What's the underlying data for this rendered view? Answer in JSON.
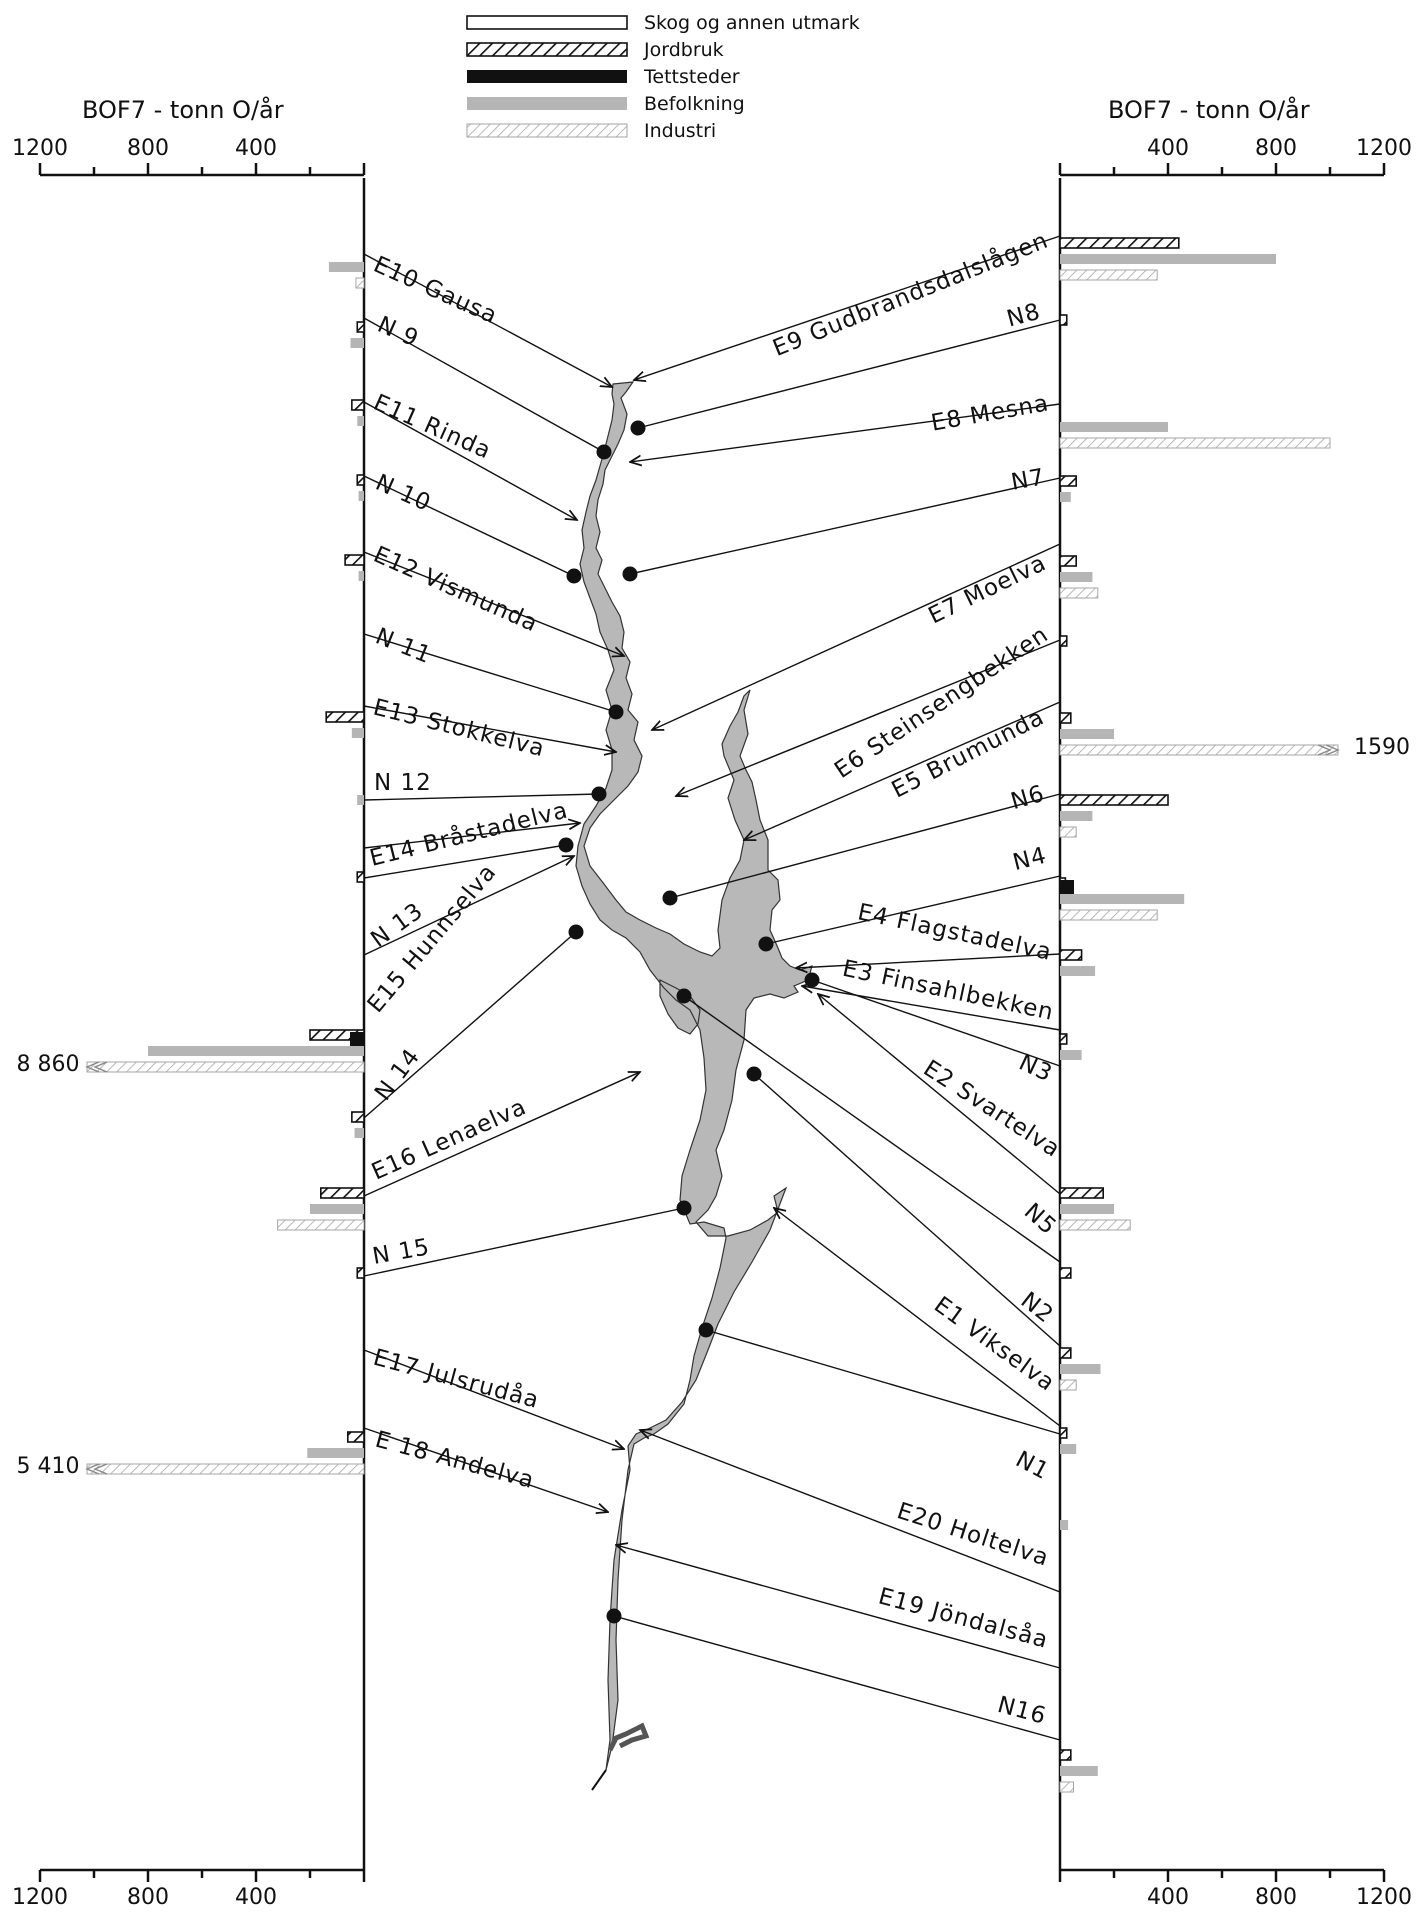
{
  "chart_data": {
    "type": "bar",
    "units": "BOF7 - tonn O/år",
    "left_axis": {
      "title": "BOF7 - tonn O/år",
      "ticks": [
        1200,
        800,
        400
      ],
      "range": [
        0,
        1200
      ]
    },
    "right_axis": {
      "title": "BOF7 - tonn O/år",
      "ticks": [
        400,
        800,
        1200
      ],
      "range": [
        0,
        1200
      ]
    },
    "legend": [
      {
        "key": "skog",
        "label": "Skog og annen utmark",
        "style": "open"
      },
      {
        "key": "jord",
        "label": "Jordbruk",
        "style": "hatched"
      },
      {
        "key": "tett",
        "label": "Tettsteder",
        "style": "solid"
      },
      {
        "key": "bef",
        "label": "Befolkning",
        "style": "grey"
      },
      {
        "key": "ind",
        "label": "Industri",
        "style": "light-hatched"
      }
    ],
    "series": [
      {
        "name": "Skog og annen utmark",
        "key": "skog"
      },
      {
        "name": "Jordbruk",
        "key": "jord"
      },
      {
        "name": "Tettsteder",
        "key": "tett"
      },
      {
        "name": "Befolkning",
        "key": "bef"
      },
      {
        "name": "Industri",
        "key": "ind"
      }
    ],
    "left_stations": [
      {
        "label": "E10 Gausa",
        "jord": 0,
        "bef": 130,
        "ind": 30
      },
      {
        "label": "N 9",
        "jord": 25,
        "bef": 50,
        "ind": 0
      },
      {
        "label": "E11 Rinda",
        "jord": 45,
        "bef": 25,
        "ind": 0
      },
      {
        "label": "N 10",
        "jord": 25,
        "bef": 20,
        "ind": 0
      },
      {
        "label": "E12 Vismunda",
        "jord": 70,
        "bef": 20,
        "ind": 0
      },
      {
        "label": "N 11",
        "jord": 0,
        "bef": 0,
        "ind": 0
      },
      {
        "label": "E13 Stokkelva",
        "jord": 140,
        "bef": 45,
        "ind": 0
      },
      {
        "label": "N 12",
        "jord": 0,
        "bef": 25,
        "ind": 0
      },
      {
        "label": "E14 Bråstadelva",
        "jord": 25,
        "bef": 0,
        "ind": 0
      },
      {
        "label": "N 13",
        "jord": 0,
        "bef": 0,
        "ind": 0
      },
      {
        "label": "E15 Hunnselva",
        "jord": 200,
        "tett": 50,
        "bef": 800,
        "ind": 8860,
        "ind_label": "8 860"
      },
      {
        "label": "N 14",
        "jord": 45,
        "bef": 35,
        "ind": 0
      },
      {
        "label": "E16 Lenaelva",
        "jord": 160,
        "bef": 200,
        "ind": 320
      },
      {
        "label": "N 15",
        "jord": 25,
        "bef": 0,
        "ind": 0
      },
      {
        "label": "E17 Julsrudåa",
        "jord": 60,
        "bef": 210,
        "ind": 5410,
        "ind_label": "5 410"
      },
      {
        "label": "E 18 Andelva",
        "jord": 0,
        "bef": 0,
        "ind": 0
      }
    ],
    "right_stations": [
      {
        "label": "E9 Gudbrandsdalslågen",
        "jord": 440,
        "bef": 800,
        "ind": 360
      },
      {
        "label": "N8",
        "jord": 25,
        "bef": 0,
        "ind": 0
      },
      {
        "label": "E8 Mesna",
        "jord": 0,
        "bef": 400,
        "ind": 1000
      },
      {
        "label": "N7",
        "jord": 60,
        "bef": 40,
        "ind": 0
      },
      {
        "label": "E7 Moelva",
        "jord": 60,
        "bef": 120,
        "ind": 140
      },
      {
        "label": "E6 Steinsengbekken",
        "jord": 25,
        "bef": 0,
        "ind": 0
      },
      {
        "label": "E5 Brumunda",
        "jord": 40,
        "bef": 200,
        "ind": 1590,
        "ind_label": "1590"
      },
      {
        "label": "N6",
        "jord": 400,
        "bef": 120,
        "ind": 60
      },
      {
        "label": "N4",
        "jord": 20,
        "tett": 35,
        "bef": 460,
        "ind": 360
      },
      {
        "label": "E4 Flagstadelva",
        "jord": 80,
        "bef": 130,
        "ind": 0
      },
      {
        "label": "E3 Finsahlbekken",
        "jord": 25,
        "bef": 80,
        "ind": 0
      },
      {
        "label": "N3",
        "jord": 0,
        "bef": 0,
        "ind": 0
      },
      {
        "label": "E2 Svartelva",
        "jord": 160,
        "bef": 200,
        "ind": 260
      },
      {
        "label": "N5",
        "jord": 40,
        "bef": 0,
        "ind": 0
      },
      {
        "label": "N2",
        "jord": 40,
        "bef": 150,
        "ind": 60
      },
      {
        "label": "E1 Vikselva",
        "jord": 25,
        "bef": 60,
        "ind": 0
      },
      {
        "label": "N1",
        "jord": 0,
        "bef": 30,
        "ind": 0
      },
      {
        "label": "E20 Holtelva",
        "jord": 0,
        "bef": 0,
        "ind": 0
      },
      {
        "label": "E19 Jöndalsåa",
        "jord": 0,
        "bef": 0,
        "ind": 0
      },
      {
        "label": "N16",
        "jord": 40,
        "bef": 140,
        "ind": 50
      }
    ]
  }
}
